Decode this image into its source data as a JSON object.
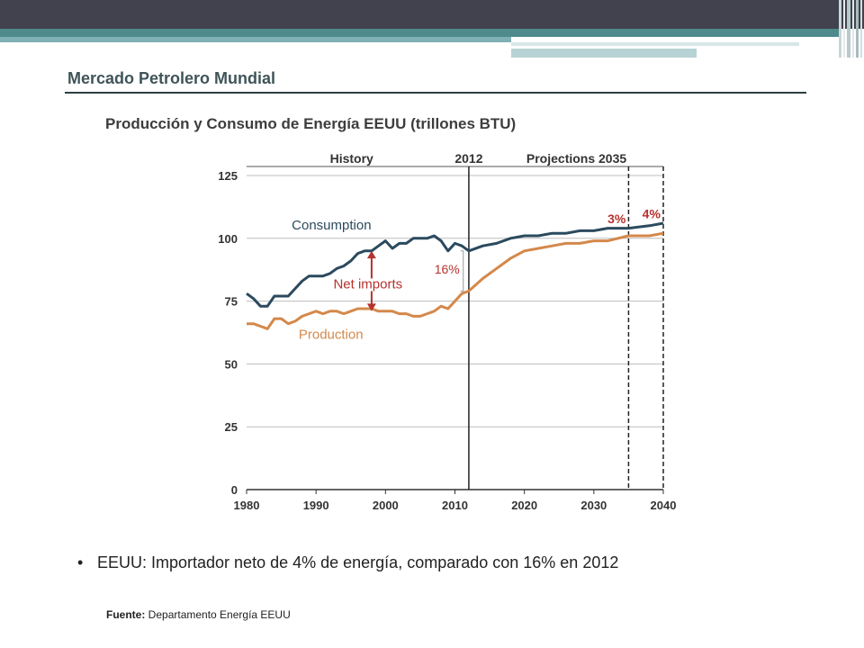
{
  "header": {
    "title": "Mercado Petrolero Mundial",
    "subtitle": "Producción y Consumo de Energía EEUU (trillones BTU)"
  },
  "colors": {
    "topbar": "#42424f",
    "accent": "#4e8a8c",
    "consumption": "#2b4a5e",
    "production": "#d4884a",
    "annotation_red": "#b5322e"
  },
  "chart_data": {
    "type": "line",
    "title": "",
    "xlabel": "",
    "ylabel": "",
    "xlim": [
      1980,
      2040
    ],
    "ylim": [
      0,
      125
    ],
    "xticks": [
      "1980",
      "1990",
      "2000",
      "2010",
      "2020",
      "2030",
      "2040"
    ],
    "yticks": [
      "0",
      "25",
      "50",
      "75",
      "100",
      "125"
    ],
    "grid": "horizontal",
    "region_labels": [
      "History",
      "2012",
      "Projections 2035"
    ],
    "vlines": [
      {
        "x": 2012,
        "style": "solid"
      },
      {
        "x": 2035,
        "style": "dashed"
      },
      {
        "x": 2040,
        "style": "dashed"
      }
    ],
    "annotations": {
      "net_imports": "Net imports",
      "pct_2012": "16%",
      "pct_2035": "3%",
      "pct_2040": "4%"
    },
    "series": [
      {
        "name": "Consumption",
        "x": [
          1980,
          1981,
          1982,
          1983,
          1984,
          1985,
          1986,
          1987,
          1988,
          1989,
          1990,
          1991,
          1992,
          1993,
          1994,
          1995,
          1996,
          1997,
          1998,
          1999,
          2000,
          2001,
          2002,
          2003,
          2004,
          2005,
          2006,
          2007,
          2008,
          2009,
          2010,
          2011,
          2012,
          2014,
          2016,
          2018,
          2020,
          2022,
          2024,
          2026,
          2028,
          2030,
          2032,
          2035,
          2038,
          2040
        ],
        "values": [
          78,
          76,
          73,
          73,
          77,
          77,
          77,
          80,
          83,
          85,
          85,
          85,
          86,
          88,
          89,
          91,
          94,
          95,
          95,
          97,
          99,
          96,
          98,
          98,
          100,
          100,
          100,
          101,
          99,
          95,
          98,
          97,
          95,
          97,
          98,
          100,
          101,
          101,
          102,
          102,
          103,
          103,
          104,
          104,
          105,
          106
        ]
      },
      {
        "name": "Production",
        "x": [
          1980,
          1981,
          1982,
          1983,
          1984,
          1985,
          1986,
          1987,
          1988,
          1989,
          1990,
          1991,
          1992,
          1993,
          1994,
          1995,
          1996,
          1997,
          1998,
          1999,
          2000,
          2001,
          2002,
          2003,
          2004,
          2005,
          2006,
          2007,
          2008,
          2009,
          2010,
          2011,
          2012,
          2014,
          2016,
          2018,
          2020,
          2022,
          2024,
          2026,
          2028,
          2030,
          2032,
          2035,
          2038,
          2040
        ],
        "values": [
          66,
          66,
          65,
          64,
          68,
          68,
          66,
          67,
          69,
          70,
          71,
          70,
          71,
          71,
          70,
          71,
          72,
          72,
          72,
          71,
          71,
          71,
          70,
          70,
          69,
          69,
          70,
          71,
          73,
          72,
          75,
          78,
          79,
          84,
          88,
          92,
          95,
          96,
          97,
          98,
          98,
          99,
          99,
          101,
          101,
          102
        ]
      }
    ]
  },
  "bullet": {
    "marker": "•",
    "text": "EEUU: Importador neto de 4% de energía, comparado con 16% en 2012"
  },
  "source": {
    "label": "Fuente:",
    "text": " Departamento Energía EEUU"
  }
}
